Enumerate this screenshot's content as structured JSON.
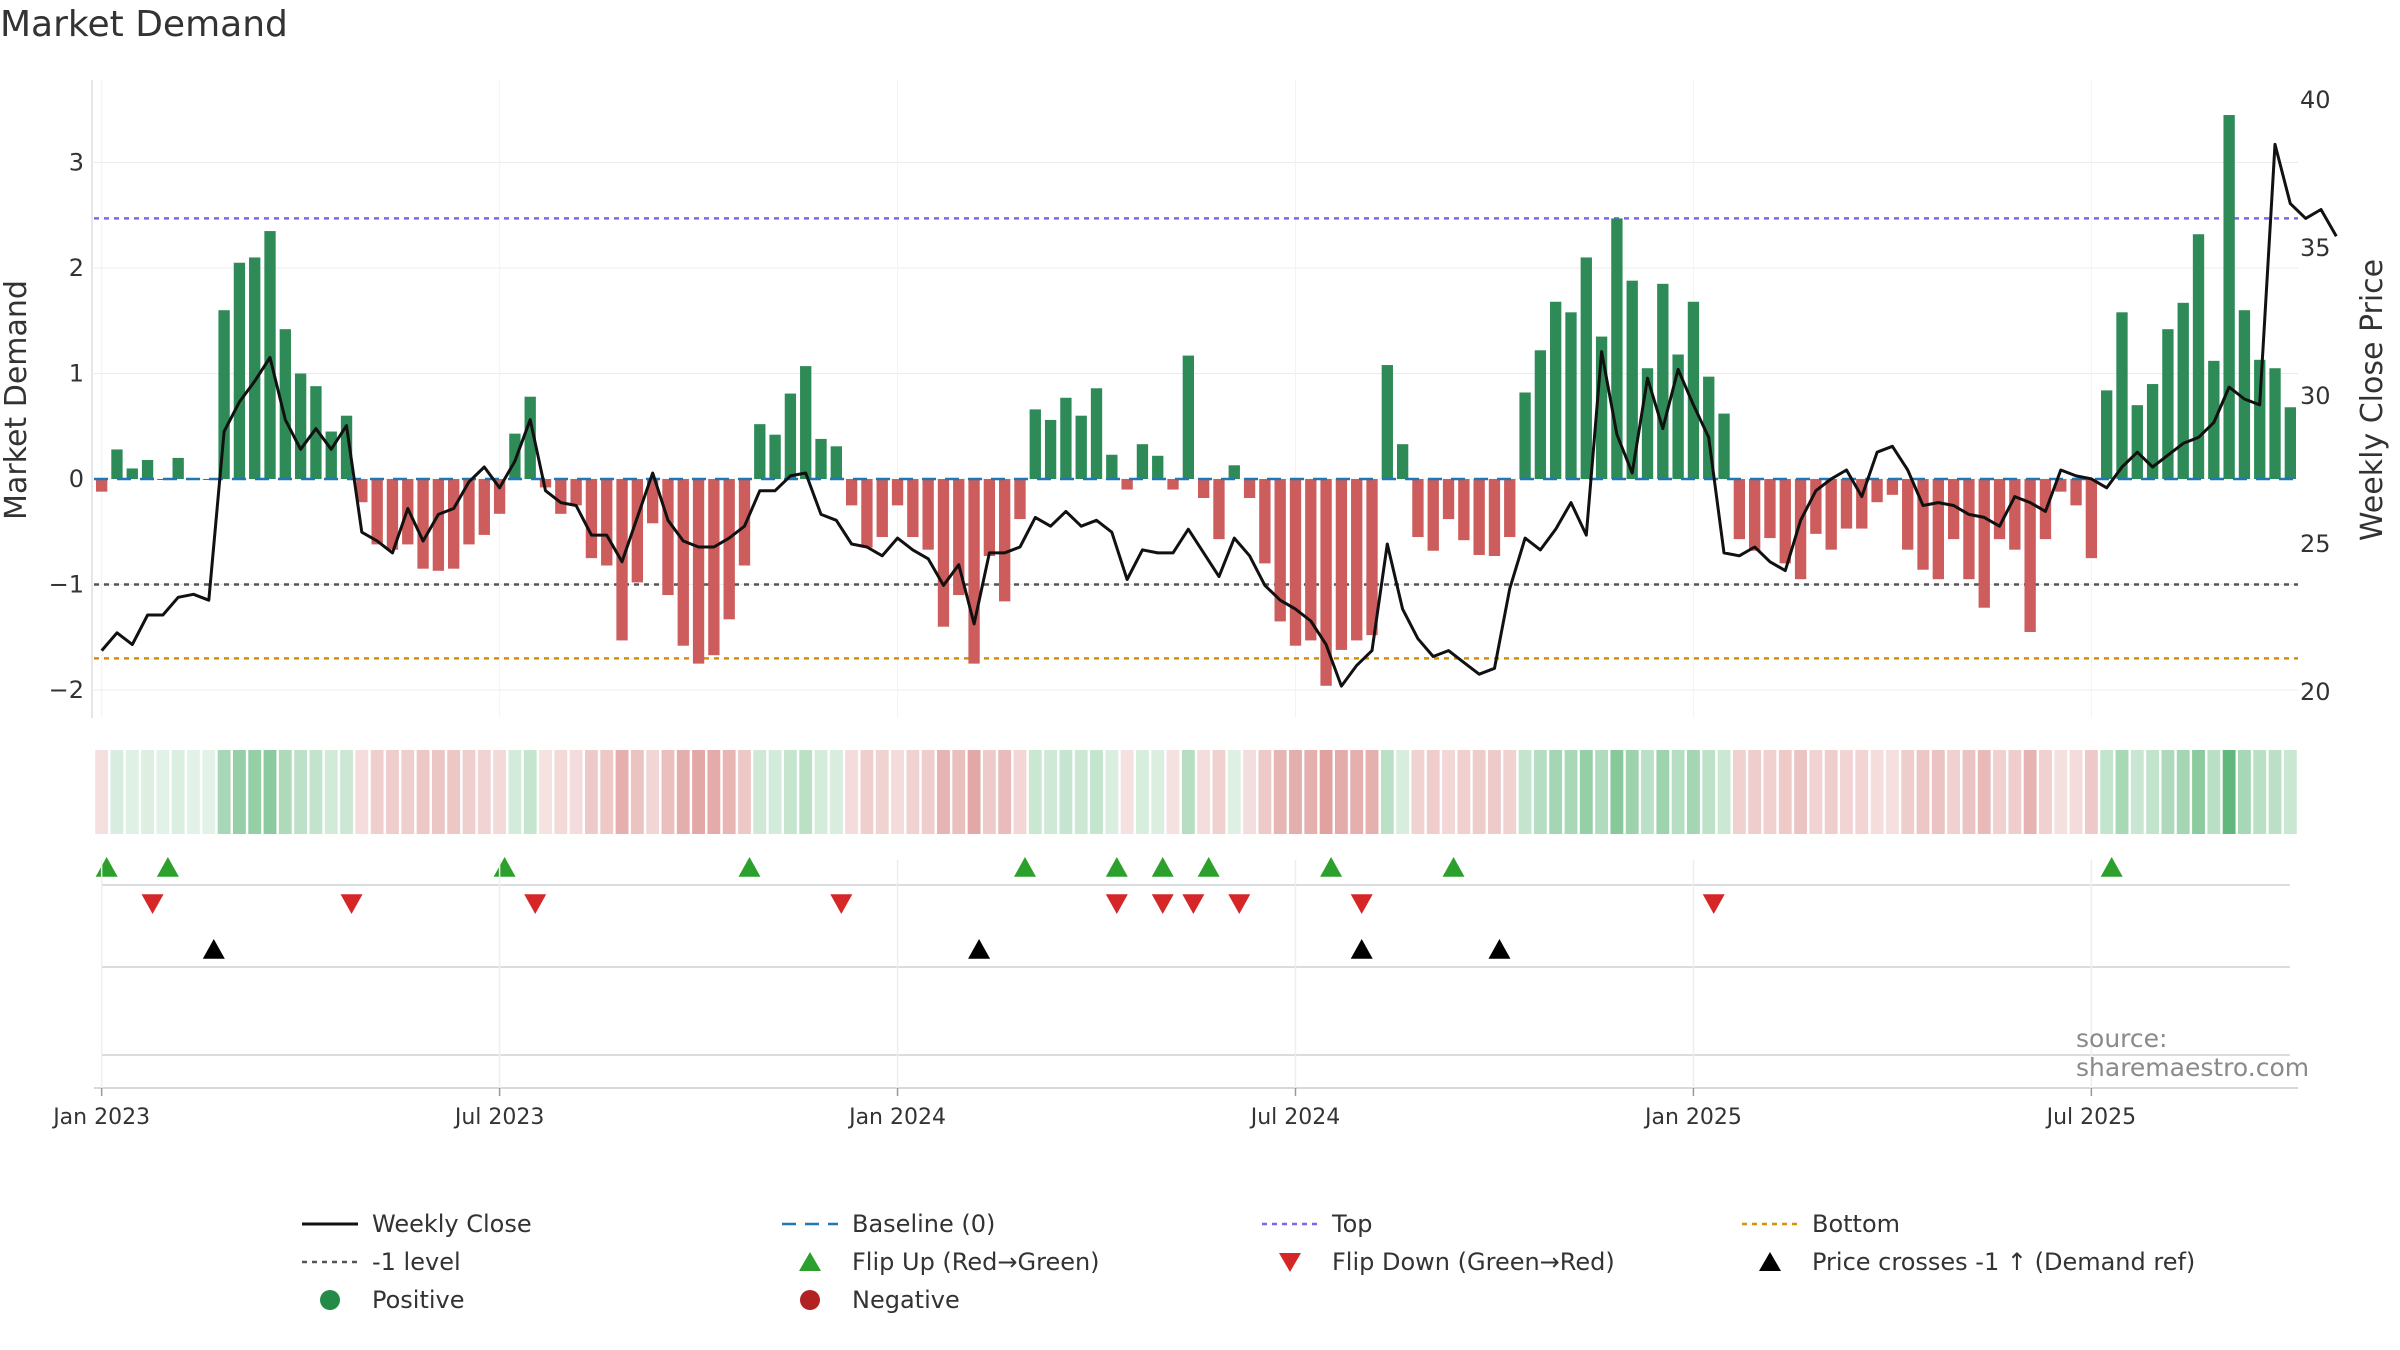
{
  "title": "Market Demand",
  "source": "source: sharemaestro.com",
  "colors": {
    "positive": "#2e8b57",
    "negative": "#cd5c5c",
    "close": "#111111",
    "top": "#7b68ee",
    "bottom": "#d4900a",
    "minus1": "#555555",
    "baseline": "#1f77b4",
    "flip_up": "#2ca02c",
    "flip_down": "#d62728",
    "cross": "#000000"
  },
  "chart_data": {
    "type": "bar",
    "title": "Market Demand",
    "ylabel_left": "Market Demand",
    "ylabel_right": "Weekly Close Price",
    "ylim_left": [
      -2.3,
      3.75
    ],
    "ylim_right": [
      20,
      40
    ],
    "yticks_left": [
      "3",
      "2",
      "1",
      "0",
      "−1",
      "−2"
    ],
    "yticks_left_values": [
      3,
      2,
      1,
      0,
      -1,
      -2
    ],
    "yticks_right": [
      "40",
      "35",
      "30",
      "25",
      "20"
    ],
    "yticks_right_values": [
      40,
      35,
      30,
      25,
      20
    ],
    "xticks": [
      "Jan 2023",
      "Jul 2023",
      "Jan 2024",
      "Jul 2024",
      "Jan 2025",
      "Jul 2025"
    ],
    "xticks_week_index": [
      0.5,
      26.5,
      52.5,
      78.5,
      104.5,
      130.5
    ],
    "reference_lines": {
      "top": 2.47,
      "bottom": -1.7,
      "minus_one": -1.0,
      "baseline": 0
    },
    "demand": [
      -0.12,
      0.28,
      0.1,
      0.18,
      0,
      0.2,
      0,
      0,
      1.6,
      2.05,
      2.1,
      2.35,
      1.42,
      1,
      0.88,
      0.45,
      0.6,
      -0.22,
      -0.62,
      -0.67,
      -0.62,
      -0.85,
      -0.87,
      -0.85,
      -0.62,
      -0.53,
      -0.33,
      0.43,
      0.78,
      -0.08,
      -0.33,
      -0.25,
      -0.75,
      -0.82,
      -1.53,
      -0.98,
      -0.42,
      -1.1,
      -1.58,
      -1.75,
      -1.67,
      -1.33,
      -0.82,
      0.52,
      0.42,
      0.81,
      1.07,
      0.38,
      0.31,
      -0.25,
      -0.65,
      -0.55,
      -0.25,
      -0.55,
      -0.67,
      -1.4,
      -1.1,
      -1.75,
      -0.73,
      -1.16,
      -0.38,
      0.66,
      0.56,
      0.77,
      0.6,
      0.86,
      0.23,
      -0.1,
      0.33,
      0.22,
      -0.1,
      1.17,
      -0.18,
      -0.57,
      0.13,
      -0.18,
      -0.8,
      -1.35,
      -1.58,
      -1.53,
      -1.96,
      -1.62,
      -1.53,
      -1.48,
      1.08,
      0.33,
      -0.55,
      -0.68,
      -0.38,
      -0.58,
      -0.72,
      -0.73,
      -0.55,
      0.82,
      1.22,
      1.68,
      1.58,
      2.1,
      1.35,
      2.47,
      1.88,
      1.05,
      1.85,
      1.18,
      1.68,
      0.97,
      0.62,
      -0.57,
      -0.68,
      -0.56,
      -0.8,
      -0.95,
      -0.52,
      -0.67,
      -0.47,
      -0.47,
      -0.22,
      -0.15,
      -0.67,
      -0.86,
      -0.95,
      -0.57,
      -0.95,
      -1.22,
      -0.57,
      -0.67,
      -1.45,
      -0.57,
      -0.12,
      -0.25,
      -0.75,
      0.84,
      1.58,
      0.7,
      0.9,
      1.42,
      1.67,
      2.32,
      1.12,
      3.45,
      1.6,
      1.13,
      1.05,
      0.68
    ],
    "close": [
      21.4,
      22,
      21.6,
      22.6,
      22.6,
      23.2,
      23.3,
      23.1,
      28.8,
      29.8,
      30.5,
      31.3,
      29.2,
      28.2,
      28.9,
      28.2,
      29,
      25.4,
      25.1,
      24.7,
      26.2,
      25.1,
      26,
      26.2,
      27.1,
      27.6,
      26.9,
      27.8,
      29.2,
      26.8,
      26.4,
      26.3,
      25.3,
      25.3,
      24.4,
      25.9,
      27.4,
      25.8,
      25.1,
      24.9,
      24.9,
      25.2,
      25.6,
      26.8,
      26.8,
      27.3,
      27.4,
      26,
      25.8,
      25,
      24.9,
      24.6,
      25.2,
      24.8,
      24.5,
      23.6,
      24.3,
      22.3,
      24.7,
      24.7,
      24.9,
      25.9,
      25.6,
      26.1,
      25.6,
      25.8,
      25.4,
      23.8,
      24.8,
      24.7,
      24.7,
      25.5,
      24.7,
      23.9,
      25.2,
      24.6,
      23.6,
      23.1,
      22.8,
      22.4,
      21.6,
      20.2,
      20.9,
      21.4,
      25,
      22.8,
      21.8,
      21.2,
      21.4,
      21,
      20.6,
      20.8,
      23.5,
      25.2,
      24.8,
      25.5,
      26.4,
      25.3,
      31.5,
      28.7,
      27.4,
      30.6,
      28.9,
      30.9,
      29.7,
      28.6,
      24.7,
      24.6,
      24.9,
      24.4,
      24.1,
      25.8,
      26.8,
      27.2,
      27.5,
      26.6,
      28.1,
      28.3,
      27.5,
      26.3,
      26.4,
      26.3,
      26,
      25.9,
      25.6,
      26.6,
      26.4,
      26.1,
      27.5,
      27.3,
      27.2,
      26.9,
      27.6,
      28.1,
      27.6,
      28,
      28.4,
      28.6,
      29.1,
      30.3,
      29.9,
      29.7,
      38.5,
      36.5,
      36,
      36.3,
      35.4
    ],
    "flip_up_weeks": [
      0,
      4,
      26,
      42,
      60,
      66,
      69,
      72,
      80,
      88,
      131
    ],
    "flip_down_weeks": [
      3,
      16,
      28,
      48,
      66,
      69,
      71,
      74,
      82,
      105
    ],
    "price_cross_weeks": [
      7,
      57,
      82,
      91
    ]
  },
  "legend": [
    {
      "label": "Weekly Close",
      "symbol": "solid-black"
    },
    {
      "label": "Baseline (0)",
      "symbol": "dash-blue"
    },
    {
      "label": "Top",
      "symbol": "dot-purple"
    },
    {
      "label": "Bottom",
      "symbol": "dot-orange"
    },
    {
      "label": "-1 level",
      "symbol": "dot-gray"
    },
    {
      "label": "Flip Up (Red→Green)",
      "symbol": "tri-up-green"
    },
    {
      "label": "Flip Down (Green→Red)",
      "symbol": "tri-down-red"
    },
    {
      "label": "Price crosses -1 ↑ (Demand ref)",
      "symbol": "tri-up-black"
    },
    {
      "label": "Positive",
      "symbol": "dot-green"
    },
    {
      "label": "Negative",
      "symbol": "dot-red"
    }
  ]
}
